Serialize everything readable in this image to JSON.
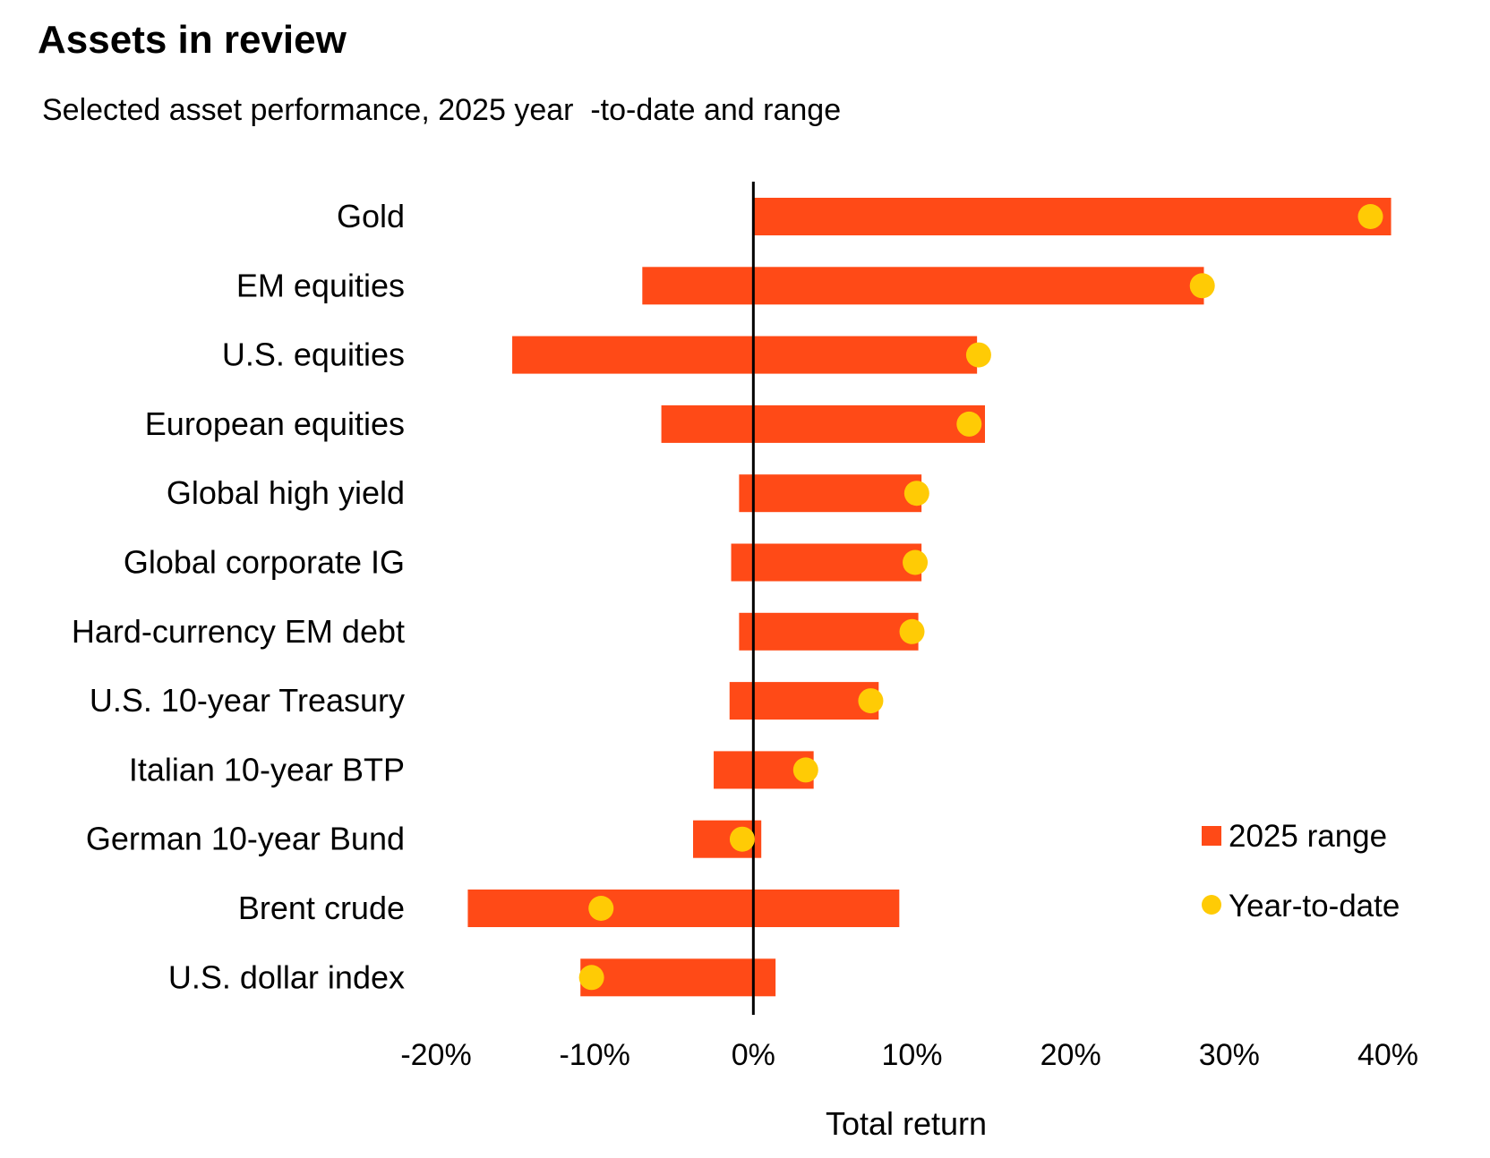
{
  "chart_data": {
    "type": "range-dot",
    "title": "Assets in review",
    "subtitle": "Selected asset performance, 2025 year  -to-date and range",
    "xlabel": "Total return",
    "xlim": [
      -20,
      40
    ],
    "xticks": [
      "-20%",
      "-10%",
      "0%",
      "10%",
      "20%",
      "30%",
      "40%"
    ],
    "xtick_values": [
      -20,
      -10,
      0,
      10,
      20,
      30,
      40
    ],
    "categories": [
      "Gold",
      "EM equities",
      "U.S. equities",
      "European equities",
      "Global high yield",
      "Global corporate IG",
      "Hard-currency EM debt",
      "U.S. 10-year Treasury",
      "Italian 10-year BTP",
      "German 10-year Bund",
      "Brent crude",
      "U.S. dollar index"
    ],
    "series": [
      {
        "name": "2025 range",
        "color": "#FF4A17",
        "low": [
          0,
          -7,
          -15.2,
          -5.8,
          -0.9,
          -1.4,
          -0.9,
          -1.5,
          -2.5,
          -3.8,
          -18,
          -10.9
        ],
        "high": [
          40.2,
          28.4,
          14.1,
          14.6,
          10.6,
          10.6,
          10.4,
          7.9,
          3.8,
          0.5,
          9.2,
          1.4
        ]
      },
      {
        "name": "Year-to-date",
        "color": "#FFCB05",
        "values": [
          38.9,
          28.3,
          14.2,
          13.6,
          10.3,
          10.2,
          10.0,
          7.4,
          3.3,
          -0.7,
          -9.6,
          -10.2
        ]
      }
    ],
    "legend": [
      {
        "label": "2025 range",
        "color": "#FF4A17"
      },
      {
        "label": "Year-to-date",
        "color": "#FFCB05"
      }
    ],
    "legend_position": "bottom-right",
    "grid": false
  }
}
